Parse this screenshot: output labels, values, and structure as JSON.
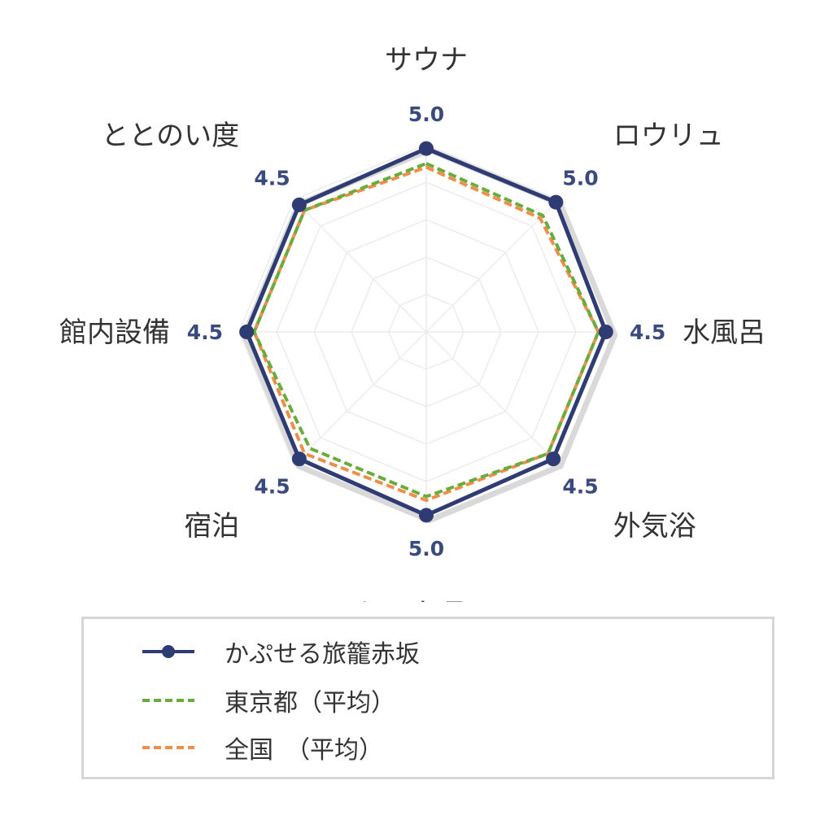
{
  "chart_data": {
    "type": "radar",
    "axes": [
      "サウナ",
      "ロウリュ",
      "水風呂",
      "外気浴",
      "レストラン",
      "宿泊",
      "館内設備",
      "ととのい度"
    ],
    "value_labels": [
      "5.0",
      "5.0",
      "4.5",
      "4.5",
      "5.0",
      "4.5",
      "4.5",
      "4.5"
    ],
    "rlim": [
      0,
      5
    ],
    "grid_levels": [
      1,
      2,
      3,
      4,
      5
    ],
    "series": [
      {
        "name": "かぷせる旅籠赤坂",
        "values": [
          4.9,
          4.9,
          4.8,
          4.8,
          4.9,
          4.8,
          4.8,
          4.8
        ],
        "color": "#2f3b73",
        "style": "solid-marker"
      },
      {
        "name": "東京都（平均）",
        "values": [
          4.5,
          4.4,
          4.6,
          4.6,
          4.4,
          4.4,
          4.6,
          4.6
        ],
        "color": "#6aac3c",
        "style": "dashed"
      },
      {
        "name": "全国　（平均）",
        "values": [
          4.4,
          4.3,
          4.6,
          4.6,
          4.5,
          4.6,
          4.6,
          4.6
        ],
        "color": "#ee8e4a",
        "style": "dashed"
      }
    ],
    "max_outline_color": "#d9d9d9",
    "legend_position": "bottom"
  }
}
